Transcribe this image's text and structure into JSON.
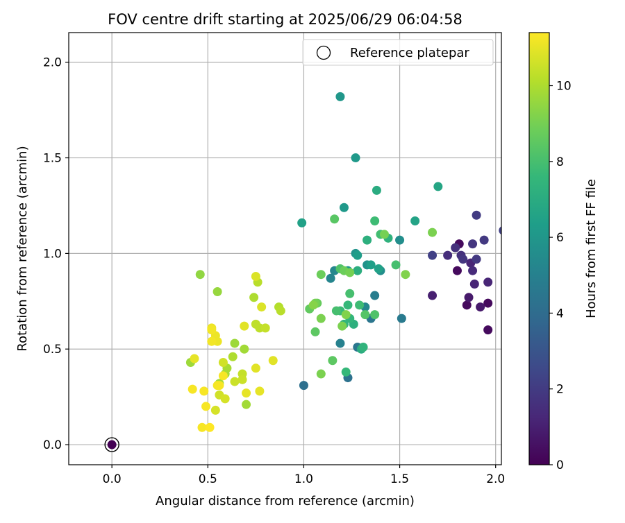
{
  "chart_data": {
    "type": "scatter",
    "title": "FOV centre drift starting at 2025/06/29 06:04:58",
    "xlabel": "Angular distance from reference (arcmin)",
    "ylabel": "Rotation from reference (arcmin)",
    "xlim": [
      -0.225,
      2.03
    ],
    "ylim": [
      -0.105,
      2.155
    ],
    "xticks": [
      0.0,
      0.5,
      1.0,
      1.5,
      2.0
    ],
    "xtick_labels": [
      "0.0",
      "0.5",
      "1.0",
      "1.5",
      "2.0"
    ],
    "yticks": [
      0.0,
      0.5,
      1.0,
      1.5,
      2.0
    ],
    "ytick_labels": [
      "0.0",
      "0.5",
      "1.0",
      "1.5",
      "2.0"
    ],
    "grid": true,
    "legend": {
      "position": "top-right",
      "entries": [
        "Reference platepar"
      ]
    },
    "colorbar": {
      "label": "Hours from first FF file",
      "colormap": "viridis",
      "range": [
        0,
        11.4
      ],
      "ticks": [
        0,
        2,
        4,
        6,
        8,
        10
      ],
      "tick_labels": [
        "0",
        "2",
        "4",
        "6",
        "8",
        "10"
      ]
    },
    "reference_point": {
      "name": "Reference platepar",
      "x": 0.0,
      "y": 0.0
    },
    "series": [
      {
        "points": [
          [
            0.0,
            0.0,
            0.0
          ],
          [
            1.8,
            0.91,
            0.3
          ],
          [
            1.81,
            1.05,
            0.3
          ],
          [
            1.85,
            0.73,
            0.3
          ],
          [
            1.96,
            0.74,
            0.3
          ],
          [
            1.96,
            0.6,
            0.3
          ],
          [
            1.86,
            0.77,
            0.8
          ],
          [
            1.92,
            0.72,
            0.8
          ],
          [
            1.67,
            0.78,
            1.0
          ],
          [
            1.89,
            0.84,
            1.2
          ],
          [
            1.96,
            0.85,
            1.2
          ],
          [
            1.87,
            0.95,
            1.2
          ],
          [
            1.88,
            0.91,
            1.4
          ],
          [
            1.75,
            0.99,
            1.5
          ],
          [
            1.79,
            1.03,
            1.6
          ],
          [
            1.82,
            0.99,
            1.6
          ],
          [
            1.83,
            0.97,
            1.8
          ],
          [
            1.88,
            1.05,
            1.8
          ],
          [
            1.9,
            0.97,
            1.9
          ],
          [
            1.94,
            1.07,
            1.9
          ],
          [
            1.9,
            1.2,
            2.0
          ],
          [
            1.67,
            0.99,
            2.2
          ],
          [
            2.04,
            1.12,
            2.2
          ],
          [
            1.0,
            0.31,
            4.2
          ],
          [
            1.23,
            0.35,
            4.3
          ],
          [
            1.28,
            0.51,
            4.5
          ],
          [
            1.35,
            0.66,
            4.5
          ],
          [
            1.51,
            0.66,
            4.7
          ],
          [
            1.37,
            0.78,
            4.8
          ],
          [
            1.19,
            0.53,
            5.0
          ],
          [
            1.14,
            0.87,
            5.2
          ],
          [
            1.16,
            0.91,
            5.3
          ],
          [
            1.32,
            0.72,
            5.3
          ],
          [
            1.5,
            1.07,
            5.6
          ],
          [
            1.4,
            0.91,
            5.6
          ],
          [
            1.33,
            0.94,
            5.8
          ],
          [
            1.27,
            1.0,
            5.9
          ],
          [
            1.23,
            0.91,
            6.0
          ],
          [
            1.19,
            1.82,
            6.0
          ],
          [
            1.27,
            1.5,
            6.1
          ],
          [
            1.21,
            1.24,
            6.1
          ],
          [
            1.28,
            0.99,
            6.3
          ],
          [
            1.35,
            0.94,
            6.4
          ],
          [
            1.39,
            0.92,
            6.5
          ],
          [
            0.99,
            1.16,
            6.5
          ],
          [
            1.58,
            1.17,
            6.6
          ],
          [
            1.7,
            1.35,
            6.7
          ],
          [
            1.38,
            1.33,
            7.0
          ],
          [
            1.3,
            0.5,
            7.0
          ],
          [
            1.26,
            0.63,
            7.2
          ],
          [
            1.28,
            0.91,
            7.1
          ],
          [
            1.33,
            1.07,
            7.2
          ],
          [
            1.44,
            1.08,
            7.3
          ],
          [
            1.31,
            0.51,
            7.4
          ],
          [
            1.21,
            0.63,
            7.5
          ],
          [
            1.24,
            0.66,
            7.5
          ],
          [
            1.23,
            0.73,
            7.6
          ],
          [
            1.22,
            0.38,
            7.6
          ],
          [
            1.19,
            0.7,
            7.7
          ],
          [
            1.29,
            0.73,
            7.8
          ],
          [
            1.37,
            1.17,
            7.8
          ],
          [
            1.4,
            1.1,
            7.9
          ],
          [
            1.17,
            0.7,
            8.0
          ],
          [
            1.48,
            0.94,
            8.0
          ],
          [
            1.24,
            0.79,
            8.0
          ],
          [
            1.37,
            0.68,
            8.2
          ],
          [
            1.19,
            0.92,
            8.2
          ],
          [
            1.32,
            0.68,
            8.3
          ],
          [
            1.16,
            1.18,
            8.4
          ],
          [
            1.06,
            0.59,
            8.5
          ],
          [
            1.15,
            0.44,
            8.5
          ],
          [
            1.03,
            0.71,
            8.6
          ],
          [
            1.07,
            0.74,
            8.7
          ],
          [
            1.09,
            0.89,
            8.8
          ],
          [
            1.21,
            0.91,
            8.8
          ],
          [
            1.24,
            0.9,
            9.0
          ],
          [
            1.42,
            1.1,
            9.0
          ],
          [
            1.06,
            0.74,
            9.0
          ],
          [
            1.09,
            0.66,
            9.1
          ],
          [
            1.2,
            0.62,
            9.1
          ],
          [
            1.67,
            1.11,
            9.1
          ],
          [
            1.09,
            0.37,
            9.1
          ],
          [
            1.22,
            0.68,
            9.2
          ],
          [
            1.53,
            0.89,
            9.2
          ],
          [
            1.05,
            0.73,
            9.3
          ],
          [
            0.46,
            0.89,
            9.5
          ],
          [
            0.55,
            0.8,
            9.6
          ],
          [
            0.41,
            0.43,
            9.7
          ],
          [
            0.7,
            0.21,
            9.8
          ],
          [
            0.64,
            0.53,
            9.7
          ],
          [
            0.69,
            0.5,
            9.8
          ],
          [
            0.56,
            0.32,
            9.8
          ],
          [
            0.6,
            0.4,
            9.9
          ],
          [
            0.59,
            0.37,
            9.9
          ],
          [
            0.63,
            0.46,
            10.0
          ],
          [
            0.74,
            0.77,
            10.0
          ],
          [
            0.87,
            0.72,
            10.1
          ],
          [
            0.88,
            0.7,
            10.2
          ],
          [
            0.76,
            0.85,
            10.2
          ],
          [
            0.75,
            0.63,
            10.3
          ],
          [
            0.77,
            0.61,
            10.3
          ],
          [
            0.8,
            0.61,
            10.4
          ],
          [
            0.68,
            0.37,
            10.4
          ],
          [
            0.64,
            0.33,
            10.5
          ],
          [
            0.68,
            0.34,
            10.5
          ],
          [
            0.58,
            0.43,
            10.6
          ],
          [
            0.56,
            0.26,
            10.6
          ],
          [
            0.59,
            0.24,
            10.7
          ],
          [
            0.54,
            0.18,
            10.7
          ],
          [
            0.75,
            0.88,
            10.8
          ],
          [
            0.78,
            0.72,
            10.8
          ],
          [
            0.69,
            0.62,
            10.9
          ],
          [
            0.75,
            0.4,
            10.9
          ],
          [
            0.84,
            0.44,
            10.9
          ],
          [
            0.7,
            0.27,
            11.0
          ],
          [
            0.77,
            0.28,
            11.0
          ],
          [
            0.43,
            0.45,
            11.0
          ],
          [
            0.54,
            0.57,
            11.1
          ],
          [
            0.55,
            0.54,
            11.1
          ],
          [
            0.52,
            0.61,
            11.1
          ],
          [
            0.52,
            0.6,
            11.2
          ],
          [
            0.52,
            0.54,
            11.2
          ],
          [
            0.55,
            0.31,
            11.2
          ],
          [
            0.58,
            0.36,
            11.3
          ],
          [
            0.56,
            0.31,
            11.3
          ],
          [
            0.42,
            0.29,
            11.3
          ],
          [
            0.48,
            0.28,
            11.3
          ],
          [
            0.49,
            0.2,
            11.3
          ],
          [
            0.47,
            0.09,
            11.3
          ],
          [
            0.51,
            0.09,
            11.4
          ]
        ]
      }
    ]
  }
}
